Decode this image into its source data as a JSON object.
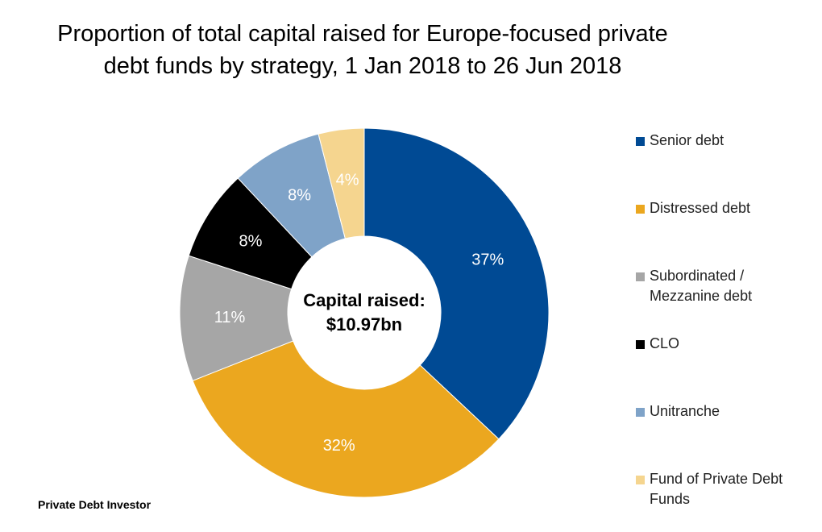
{
  "title": "Proportion of total capital raised for Europe-focused private debt funds by strategy, 1 Jan 2018 to 26 Jun 2018",
  "source": "Private Debt Investor",
  "chart_data": {
    "type": "pie",
    "variant": "donut",
    "title": "Proportion of total capital raised for Europe-focused private debt funds by strategy, 1 Jan 2018 to 26 Jun 2018",
    "center_label": [
      "Capital raised:",
      "$10.97bn"
    ],
    "legend_position": "right",
    "categories": [
      "Senior debt",
      "Distressed debt",
      "Subordinated / Mezzanine debt",
      "CLO",
      "Unitranche",
      "Fund of Private Debt Funds"
    ],
    "values": [
      37,
      32,
      11,
      8,
      8,
      4
    ],
    "data_labels": [
      "37%",
      "32%",
      "11%",
      "8%",
      "8%",
      "4%"
    ],
    "colors": [
      "#004a94",
      "#eba71f",
      "#a6a6a6",
      "#000000",
      "#7fa3c8",
      "#f5d58f"
    ],
    "label_colors": [
      "#ffffff",
      "#ffffff",
      "#ffffff",
      "#ffffff",
      "#ffffff",
      "#ffffff"
    ]
  }
}
